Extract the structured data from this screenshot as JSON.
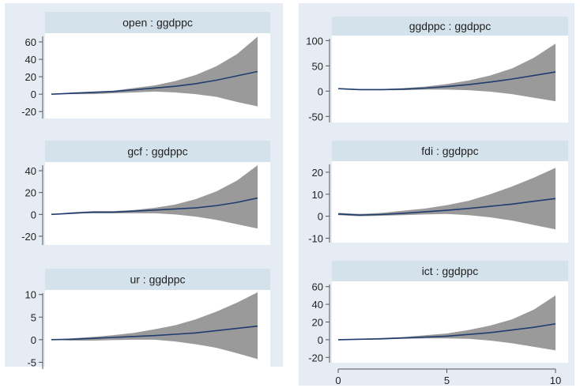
{
  "colors": {
    "panel_bg": "#e5ecf3",
    "plot_bg": "#ffffff",
    "title_bar": "#d4e2ec",
    "band_fill": "#9a9a9a",
    "line": "#1f3d6e",
    "axis": "#555555",
    "text": "#222222"
  },
  "chart_data": [
    {
      "type": "area",
      "title": "open : ggdppc",
      "x": [
        0,
        1,
        2,
        3,
        4,
        5,
        6,
        7,
        8,
        9,
        10
      ],
      "ylim": [
        -28,
        70
      ],
      "yticks": [
        -20,
        0,
        20,
        40,
        60
      ],
      "ytick_labels": [
        "-20",
        "0",
        "20",
        "40",
        "60"
      ],
      "series": [
        {
          "values": [
            0,
            1,
            2,
            3,
            5,
            7,
            9,
            12,
            16,
            21,
            26
          ]
        },
        {
          "values": [
            0,
            2,
            3,
            4,
            7,
            10,
            15,
            22,
            32,
            46,
            66
          ]
        },
        {
          "values": [
            0,
            0,
            0,
            1,
            2,
            3,
            2,
            0,
            -3,
            -9,
            -14
          ]
        }
      ]
    },
    {
      "type": "area",
      "title": "gcf : ggdppc",
      "x": [
        0,
        1,
        2,
        3,
        4,
        5,
        6,
        7,
        8,
        9,
        10
      ],
      "ylim": [
        -28,
        48
      ],
      "yticks": [
        -20,
        0,
        20,
        40
      ],
      "ytick_labels": [
        "-20",
        "0",
        "20",
        "40"
      ],
      "series": [
        {
          "values": [
            0,
            1,
            2,
            2,
            3,
            4,
            5,
            6,
            8,
            11,
            15
          ]
        },
        {
          "values": [
            0,
            2,
            3,
            3,
            4,
            6,
            9,
            14,
            21,
            31,
            45
          ]
        },
        {
          "values": [
            0,
            1,
            1,
            1,
            1,
            1,
            0,
            -2,
            -5,
            -9,
            -13
          ]
        }
      ]
    },
    {
      "type": "area",
      "title": "ur : ggdppc",
      "x": [
        0,
        1,
        2,
        3,
        4,
        5,
        6,
        7,
        8,
        9,
        10
      ],
      "ylim": [
        -6.5,
        11
      ],
      "yticks": [
        -5,
        0,
        5,
        10
      ],
      "ytick_labels": [
        "-5",
        "0",
        "5",
        "10"
      ],
      "series": [
        {
          "values": [
            0,
            0.1,
            0.3,
            0.5,
            0.7,
            0.9,
            1.2,
            1.5,
            2,
            2.5,
            3
          ]
        },
        {
          "values": [
            0,
            0.3,
            0.6,
            1,
            1.5,
            2.3,
            3.2,
            4.5,
            6.2,
            8.2,
            10.5
          ]
        },
        {
          "values": [
            0,
            -0.2,
            -0.2,
            -0.1,
            0,
            0,
            -0.4,
            -1,
            -1.8,
            -3,
            -4.3
          ]
        }
      ]
    },
    {
      "type": "area",
      "title": "ggdppc : ggdppc",
      "x": [
        0,
        1,
        2,
        3,
        4,
        5,
        6,
        7,
        8,
        9,
        10
      ],
      "ylim": [
        -62,
        110
      ],
      "yticks": [
        -50,
        0,
        50,
        100
      ],
      "ytick_labels": [
        "-50",
        "0",
        "50",
        "100"
      ],
      "series": [
        {
          "values": [
            5,
            3,
            3,
            4,
            6,
            9,
            13,
            18,
            24,
            31,
            38
          ]
        },
        {
          "values": [
            6,
            4,
            4,
            6,
            9,
            14,
            21,
            31,
            45,
            66,
            94
          ]
        },
        {
          "values": [
            4,
            2,
            2,
            2,
            3,
            3,
            2,
            -1,
            -6,
            -13,
            -20
          ]
        }
      ]
    },
    {
      "type": "area",
      "title": "fdi : ggdppc",
      "x": [
        0,
        1,
        2,
        3,
        4,
        5,
        6,
        7,
        8,
        9,
        10
      ],
      "ylim": [
        -12,
        25
      ],
      "yticks": [
        -10,
        0,
        10,
        20
      ],
      "ytick_labels": [
        "-10",
        "0",
        "10",
        "20"
      ],
      "series": [
        {
          "values": [
            1,
            0.5,
            0.8,
            1.3,
            2,
            2.7,
            3.5,
            4.5,
            5.5,
            6.8,
            8
          ]
        },
        {
          "values": [
            1.5,
            1,
            1.5,
            2.5,
            3.5,
            5,
            7,
            10,
            13.5,
            17.5,
            22
          ]
        },
        {
          "values": [
            0.5,
            0,
            0.2,
            0.5,
            0.8,
            1,
            0.5,
            -0.5,
            -2,
            -4,
            -6
          ]
        }
      ]
    },
    {
      "type": "area",
      "title": "ict : ggdppc",
      "x": [
        0,
        1,
        2,
        3,
        4,
        5,
        6,
        7,
        8,
        9,
        10
      ],
      "ylim": [
        -26,
        66
      ],
      "yticks": [
        -20,
        0,
        20,
        40,
        60
      ],
      "ytick_labels": [
        "-20",
        "0",
        "20",
        "40",
        "60"
      ],
      "xticks": [
        0,
        5,
        10
      ],
      "xtick_labels": [
        "0",
        "5",
        "10"
      ],
      "series": [
        {
          "values": [
            0,
            0.5,
            1,
            2,
            3,
            4,
            6,
            8,
            11,
            14,
            18
          ]
        },
        {
          "values": [
            0,
            1,
            2,
            3,
            5,
            7,
            11,
            16,
            23,
            34,
            50
          ]
        },
        {
          "values": [
            0,
            0,
            0.5,
            1,
            1.5,
            1.5,
            1,
            -1,
            -4,
            -8,
            -12
          ]
        }
      ]
    }
  ]
}
